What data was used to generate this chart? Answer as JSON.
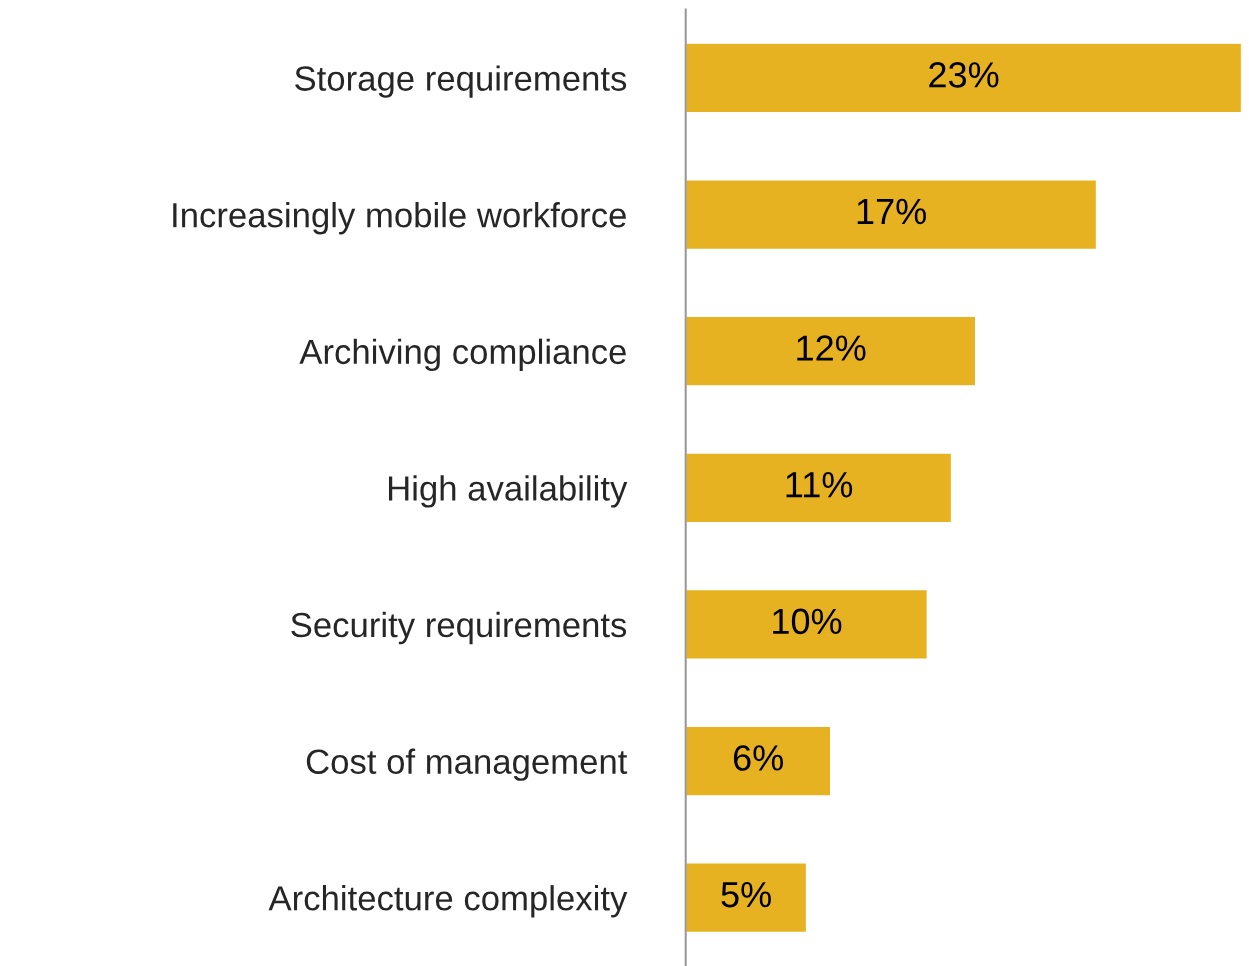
{
  "chart_data": {
    "type": "bar",
    "orientation": "horizontal",
    "categories": [
      "Storage requirements",
      "Increasingly mobile workforce",
      "Archiving compliance",
      "High availability",
      "Security requirements",
      "Cost of management",
      "Architecture complexity"
    ],
    "values": [
      23,
      17,
      12,
      11,
      10,
      6,
      5
    ],
    "value_labels": [
      "23%",
      "17%",
      "12%",
      "11%",
      "10%",
      "6%",
      "5%"
    ],
    "color": "#e6b222",
    "xlim": [
      0,
      23
    ],
    "tick_labels": "y",
    "grid": false,
    "legend": false
  }
}
